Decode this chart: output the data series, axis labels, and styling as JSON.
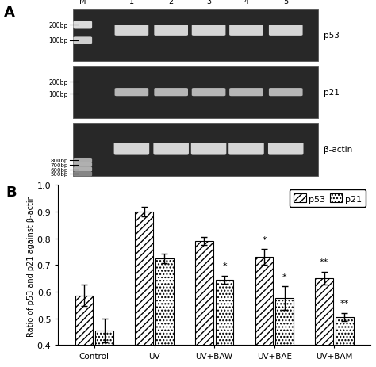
{
  "categories": [
    "Control",
    "UV",
    "UV+BAW",
    "UV+BAE",
    "UV+BAM"
  ],
  "p53_values": [
    0.585,
    0.9,
    0.79,
    0.73,
    0.65
  ],
  "p21_values": [
    0.455,
    0.725,
    0.645,
    0.575,
    0.505
  ],
  "p53_errors": [
    0.04,
    0.018,
    0.015,
    0.03,
    0.025
  ],
  "p21_errors": [
    0.045,
    0.018,
    0.015,
    0.045,
    0.015
  ],
  "ylabel": "Ratio of p53 and p21 against β-actin",
  "ylim": [
    0.4,
    1.0
  ],
  "yticks": [
    0.4,
    0.5,
    0.6,
    0.7,
    0.8,
    0.9,
    1.0
  ],
  "bar_width": 0.3,
  "p53_hatch": "////",
  "p21_hatch": "....",
  "p53_facecolor": "#ffffff",
  "p21_facecolor": "#ffffff",
  "p53_edge": "#000000",
  "p21_edge": "#000000",
  "legend_p53": "p53",
  "legend_p21": "p21",
  "annotations_p53": [
    "",
    "",
    "",
    "*",
    "**"
  ],
  "annotations_p21": [
    "",
    "",
    "*",
    "*",
    "**"
  ],
  "lane_labels": [
    "M",
    "1",
    "2",
    "3",
    "4",
    "5"
  ],
  "bp_labels_top": [
    "200bp",
    "100bp"
  ],
  "bp_labels_mid": [
    "200bp",
    "100bp"
  ],
  "bp_labels_bot": [
    "800bp",
    "700bp",
    "600bp",
    "500bp"
  ],
  "gene_labels": [
    "p53",
    "p21",
    "β-actin"
  ],
  "panel_a_label": "A",
  "panel_b_label": "B"
}
